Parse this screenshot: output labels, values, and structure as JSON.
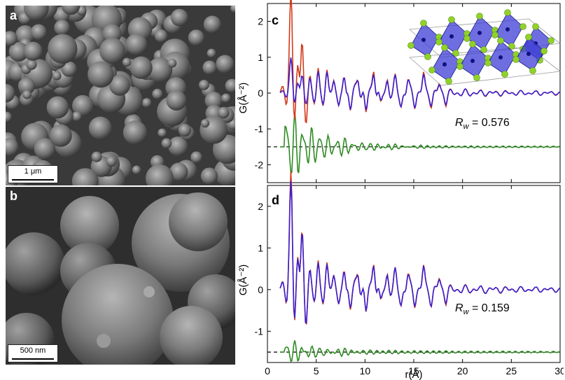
{
  "figure": {
    "panels": {
      "a": {
        "letter": "a",
        "scale_bar": "1 μm"
      },
      "b": {
        "letter": "b",
        "scale_bar": "500 nm"
      },
      "c": {
        "letter": "c",
        "rw_symbol": "R",
        "rw_sub": "w",
        "rw_value": " = 0.576"
      },
      "d": {
        "letter": "d",
        "rw_symbol": "R",
        "rw_sub": "w",
        "rw_value": " = 0.159"
      }
    },
    "ylabel": "G(Å⁻²)",
    "xlabel": "r(Å)",
    "colors": {
      "observed": "#d23a1a",
      "calculated": "#3a1fd0",
      "difference": "#2e8b22",
      "baseline": "#000000",
      "octahedra": "#3d3dd6",
      "anions": "#8fd22a"
    }
  },
  "chart_data": [
    {
      "panel": "c",
      "type": "line",
      "xlim": [
        0,
        30
      ],
      "ylim": [
        -2.5,
        2.5
      ],
      "xticks": [
        0,
        5,
        10,
        15,
        20,
        25,
        30
      ],
      "yticks": [
        -2,
        -1,
        0,
        1,
        2
      ],
      "baseline_y": -1.5,
      "rw": 0.576,
      "series": []
    },
    {
      "panel": "d",
      "type": "line",
      "xlim": [
        0,
        30
      ],
      "ylim": [
        -1.75,
        2.5
      ],
      "xticks": [
        0,
        5,
        10,
        15,
        20,
        25,
        30
      ],
      "xtick_labels": [
        "0",
        "5",
        "10",
        "15",
        "20",
        "25",
        "30"
      ],
      "yticks": [
        -1,
        0,
        1,
        2
      ],
      "baseline_y": -1.5,
      "rw": 0.159,
      "series": []
    }
  ]
}
